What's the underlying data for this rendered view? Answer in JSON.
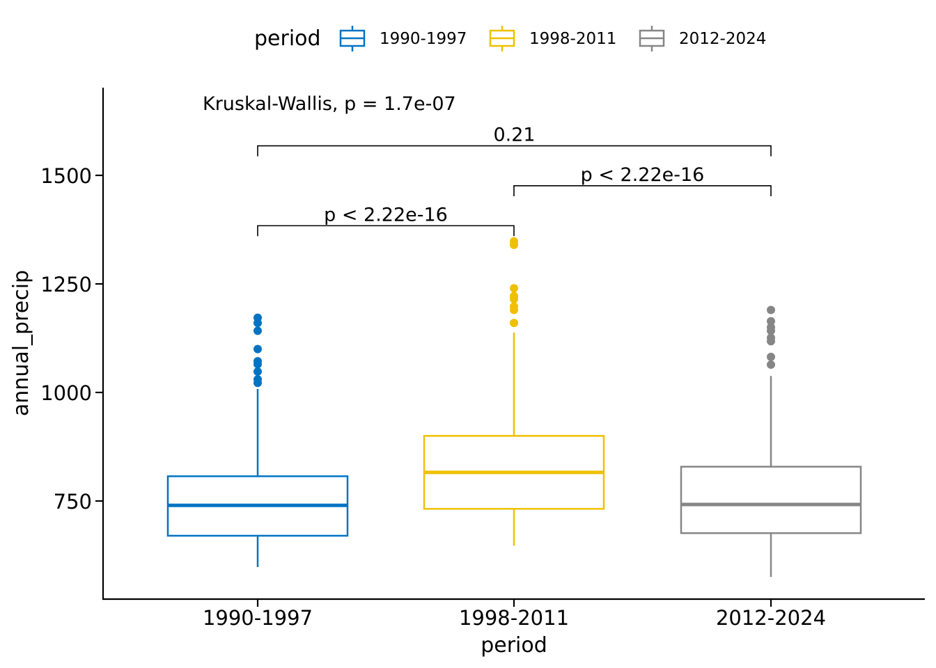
{
  "chart_data": {
    "type": "boxplot",
    "title": "",
    "xlabel": "period",
    "ylabel": "annual_precip",
    "ylim": [
      545,
      1700
    ],
    "yticks": [
      750,
      1000,
      1250,
      1500
    ],
    "grid": false,
    "legend": {
      "title": "period",
      "position": "top",
      "entries": [
        "1990-1997",
        "1998-2011",
        "2012-2024"
      ]
    },
    "categories": [
      "1990-1997",
      "1998-2011",
      "2012-2024"
    ],
    "series": [
      {
        "name": "1990-1997",
        "color": "#0073C2",
        "whisker_low": 598,
        "q1": 670,
        "median": 740,
        "q3": 807,
        "whisker_high": 1008,
        "outliers": [
          1022,
          1030,
          1048,
          1065,
          1072,
          1100,
          1142,
          1160,
          1172
        ]
      },
      {
        "name": "1998-2011",
        "color": "#EFC000",
        "whisker_low": 647,
        "q1": 732,
        "median": 816,
        "q3": 900,
        "whisker_high": 1138,
        "outliers": [
          1160,
          1190,
          1198,
          1215,
          1222,
          1240,
          1340,
          1348
        ]
      },
      {
        "name": "2012-2024",
        "color": "#868686",
        "whisker_low": 575,
        "q1": 676,
        "median": 742,
        "q3": 829,
        "whisker_high": 1038,
        "outliers": [
          1064,
          1082,
          1118,
          1126,
          1142,
          1150,
          1164,
          1190
        ]
      }
    ],
    "annotations": {
      "global_test": "Kruskal-Wallis, p = 1.7e-07",
      "comparisons": [
        {
          "from": "1990-1997",
          "to": "1998-2011",
          "label": "p < 2.22e-16",
          "y": 1384
        },
        {
          "from": "1998-2011",
          "to": "2012-2024",
          "label": "p < 2.22e-16",
          "y": 1476
        },
        {
          "from": "1990-1997",
          "to": "2012-2024",
          "label": "0.21",
          "y": 1568
        }
      ]
    }
  }
}
